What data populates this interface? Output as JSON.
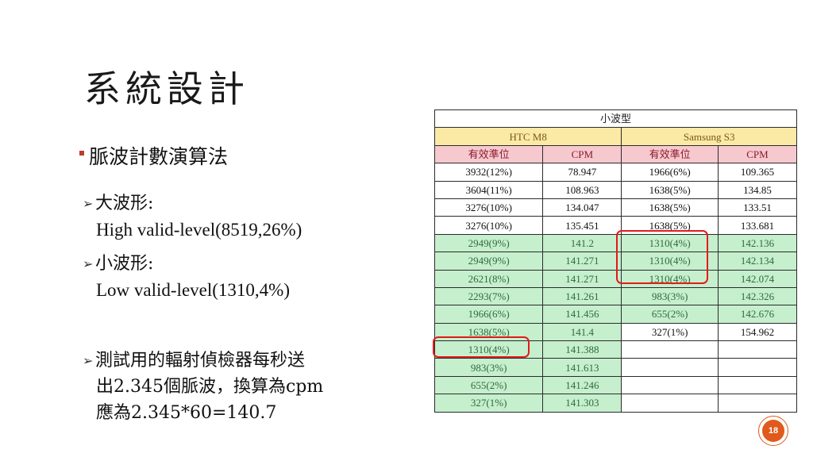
{
  "slide": {
    "title": "系統設計",
    "page_number": "18"
  },
  "bullets": {
    "main": "脈波計數演算法",
    "big_wave_label": "大波形:",
    "big_wave_value": "High valid-level(8519,26%)",
    "small_wave_label": "小波形:",
    "small_wave_value": "Low valid-level(1310,4%)",
    "note_line1": "測試用的輻射偵檢器每秒送",
    "note_line2": "出2.345個脈波，換算為cpm",
    "note_line3": "應為2.345*60=140.7"
  },
  "table": {
    "title": "小波型",
    "devices": [
      "HTC M8",
      "Samsung S3"
    ],
    "headers": [
      "有效準位",
      "CPM",
      "有效準位",
      "CPM"
    ],
    "rows": [
      [
        {
          "t": "3932(12%)",
          "g": false
        },
        {
          "t": "78.947",
          "g": false
        },
        {
          "t": "1966(6%)",
          "g": false
        },
        {
          "t": "109.365",
          "g": false
        }
      ],
      [
        {
          "t": "3604(11%)",
          "g": false
        },
        {
          "t": "108.963",
          "g": false
        },
        {
          "t": "1638(5%)",
          "g": false
        },
        {
          "t": "134.85",
          "g": false
        }
      ],
      [
        {
          "t": "3276(10%)",
          "g": false
        },
        {
          "t": "134.047",
          "g": false
        },
        {
          "t": "1638(5%)",
          "g": false
        },
        {
          "t": "133.51",
          "g": false
        }
      ],
      [
        {
          "t": "3276(10%)",
          "g": false
        },
        {
          "t": "135.451",
          "g": false
        },
        {
          "t": "1638(5%)",
          "g": false
        },
        {
          "t": "133.681",
          "g": false
        }
      ],
      [
        {
          "t": "2949(9%)",
          "g": true
        },
        {
          "t": "141.2",
          "g": true
        },
        {
          "t": "1310(4%)",
          "g": true
        },
        {
          "t": "142.136",
          "g": true
        }
      ],
      [
        {
          "t": "2949(9%)",
          "g": true
        },
        {
          "t": "141.271",
          "g": true
        },
        {
          "t": "1310(4%)",
          "g": true
        },
        {
          "t": "142.134",
          "g": true
        }
      ],
      [
        {
          "t": "2621(8%)",
          "g": true
        },
        {
          "t": "141.271",
          "g": true
        },
        {
          "t": "1310(4%)",
          "g": true
        },
        {
          "t": "142.074",
          "g": true
        }
      ],
      [
        {
          "t": "2293(7%)",
          "g": true
        },
        {
          "t": "141.261",
          "g": true
        },
        {
          "t": "983(3%)",
          "g": true
        },
        {
          "t": "142.326",
          "g": true
        }
      ],
      [
        {
          "t": "1966(6%)",
          "g": true
        },
        {
          "t": "141.456",
          "g": true
        },
        {
          "t": "655(2%)",
          "g": true
        },
        {
          "t": "142.676",
          "g": true
        }
      ],
      [
        {
          "t": "1638(5%)",
          "g": true
        },
        {
          "t": "141.4",
          "g": true
        },
        {
          "t": "327(1%)",
          "g": false
        },
        {
          "t": "154.962",
          "g": false
        }
      ],
      [
        {
          "t": "1310(4%)",
          "g": true
        },
        {
          "t": "141.388",
          "g": true
        },
        {
          "t": "",
          "g": false
        },
        {
          "t": "",
          "g": false
        }
      ],
      [
        {
          "t": "983(3%)",
          "g": true
        },
        {
          "t": "141.613",
          "g": true
        },
        {
          "t": "",
          "g": false
        },
        {
          "t": "",
          "g": false
        }
      ],
      [
        {
          "t": "655(2%)",
          "g": true
        },
        {
          "t": "141.246",
          "g": true
        },
        {
          "t": "",
          "g": false
        },
        {
          "t": "",
          "g": false
        }
      ],
      [
        {
          "t": "327(1%)",
          "g": true
        },
        {
          "t": "141.303",
          "g": true
        },
        {
          "t": "",
          "g": false
        },
        {
          "t": "",
          "g": false
        }
      ]
    ]
  },
  "colors": {
    "highlight_box": "#e21b1b",
    "header_pink": "#f6c9cf",
    "device_yellow": "#fbe9a6",
    "green_cell": "#c6efcd",
    "accent_orange": "#e05a1b"
  }
}
